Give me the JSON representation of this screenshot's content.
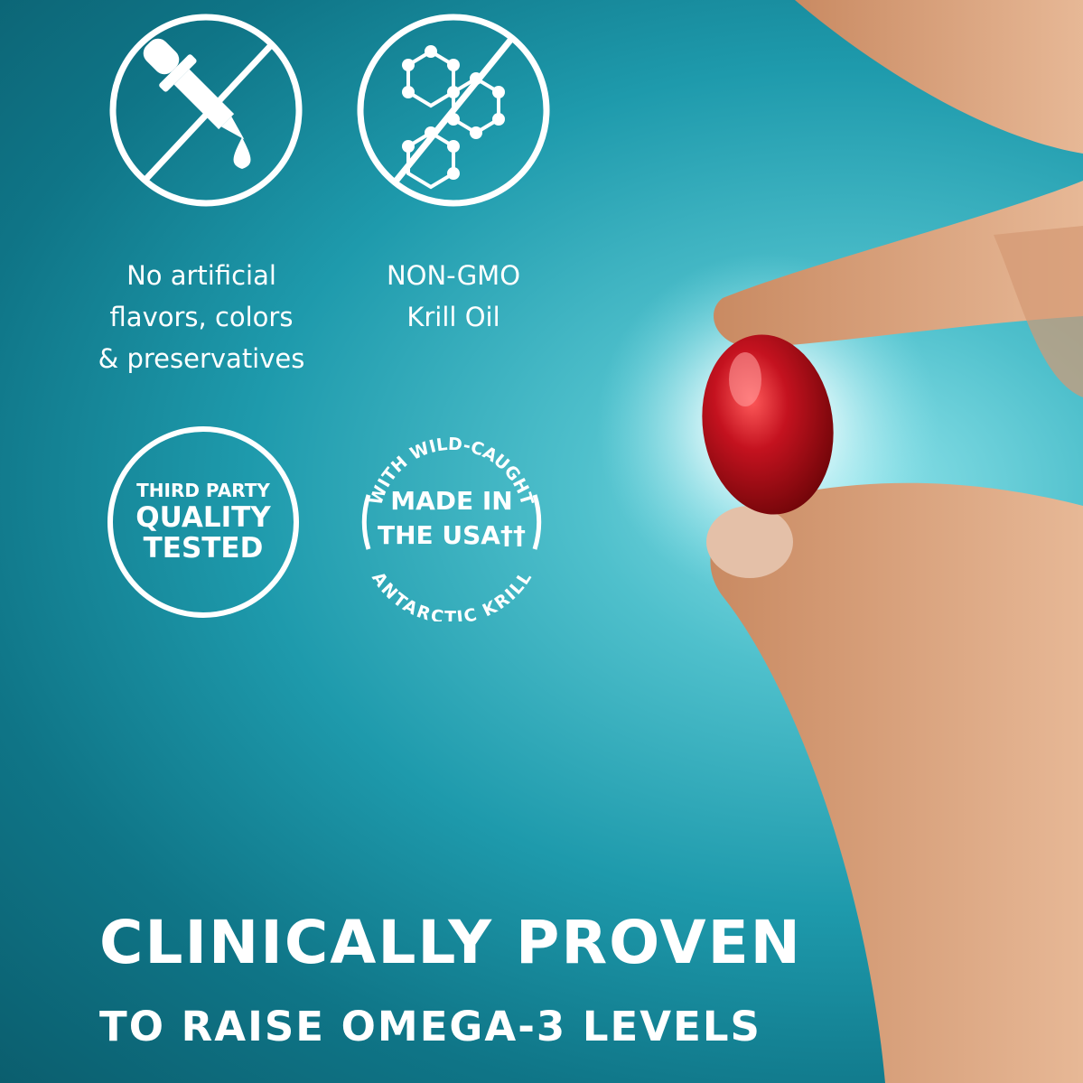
{
  "features": [
    {
      "icon": "no-dropper-icon",
      "lines": [
        "No artificial",
        "flavors, colors",
        "& preservatives"
      ]
    },
    {
      "icon": "no-molecule-icon",
      "lines": [
        "NON-GMO",
        "Krill Oil"
      ]
    }
  ],
  "badges": {
    "quality": {
      "lines": [
        "THIRD PARTY",
        "QUALITY",
        "TESTED"
      ]
    },
    "usa": {
      "top_arc": "WITH WILD-CAUGHT",
      "lines": [
        "MADE IN",
        "THE USA††"
      ],
      "bottom_arc": "ANTARCTIC KRILL"
    }
  },
  "headline": {
    "line1": "CLINICALLY PROVEN",
    "line2": "TO RAISE OMEGA-3 LEVELS"
  },
  "colors": {
    "background_dark": "#0b5e6e",
    "background_light": "#8fe3ea",
    "capsule": "#b5101c",
    "skin": "#d9a07c"
  }
}
